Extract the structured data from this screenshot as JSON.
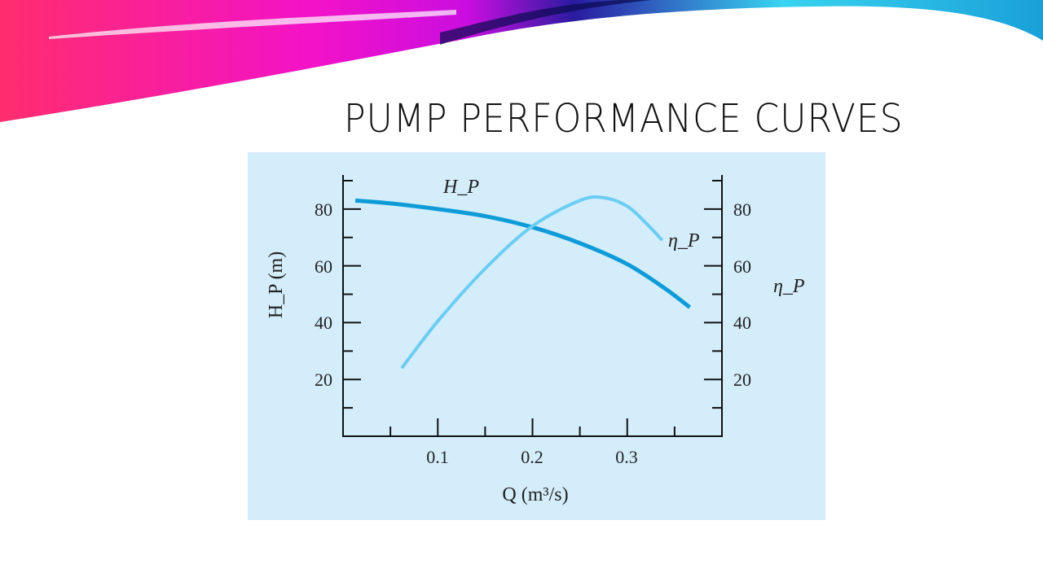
{
  "slide": {
    "title": "PUMP PERFORMANCE CURVES"
  },
  "colors": {
    "head_curve": "#0e9bd8",
    "efficiency_curve": "#6ccdf2",
    "panel_background": "#d4edfb"
  },
  "chart_data": {
    "type": "line",
    "xlabel": "Q (m³/s)",
    "ylabel": "H_P (m)",
    "y2label": "η_P",
    "xlim": [
      0,
      0.4
    ],
    "ylim": [
      0,
      92
    ],
    "y2lim": [
      0,
      92
    ],
    "xticks": [
      "0.1",
      "0.2",
      "0.3"
    ],
    "yticks": [
      "20",
      "40",
      "60",
      "80"
    ],
    "y2ticks": [
      "20",
      "40",
      "60",
      "80"
    ],
    "grid": false,
    "series": [
      {
        "name": "H_P",
        "axis": "left",
        "x": [
          0.013,
          0.05,
          0.1,
          0.15,
          0.2,
          0.25,
          0.3,
          0.34,
          0.366
        ],
        "y": [
          83,
          82,
          80,
          77.5,
          73.6,
          68,
          60.6,
          52,
          45.4
        ]
      },
      {
        "name": "η_P",
        "axis": "right",
        "x": [
          0.062,
          0.1,
          0.15,
          0.2,
          0.25,
          0.275,
          0.3,
          0.32,
          0.337
        ],
        "y": [
          24,
          40.5,
          59,
          74,
          83,
          84,
          81,
          75,
          69
        ]
      }
    ]
  }
}
